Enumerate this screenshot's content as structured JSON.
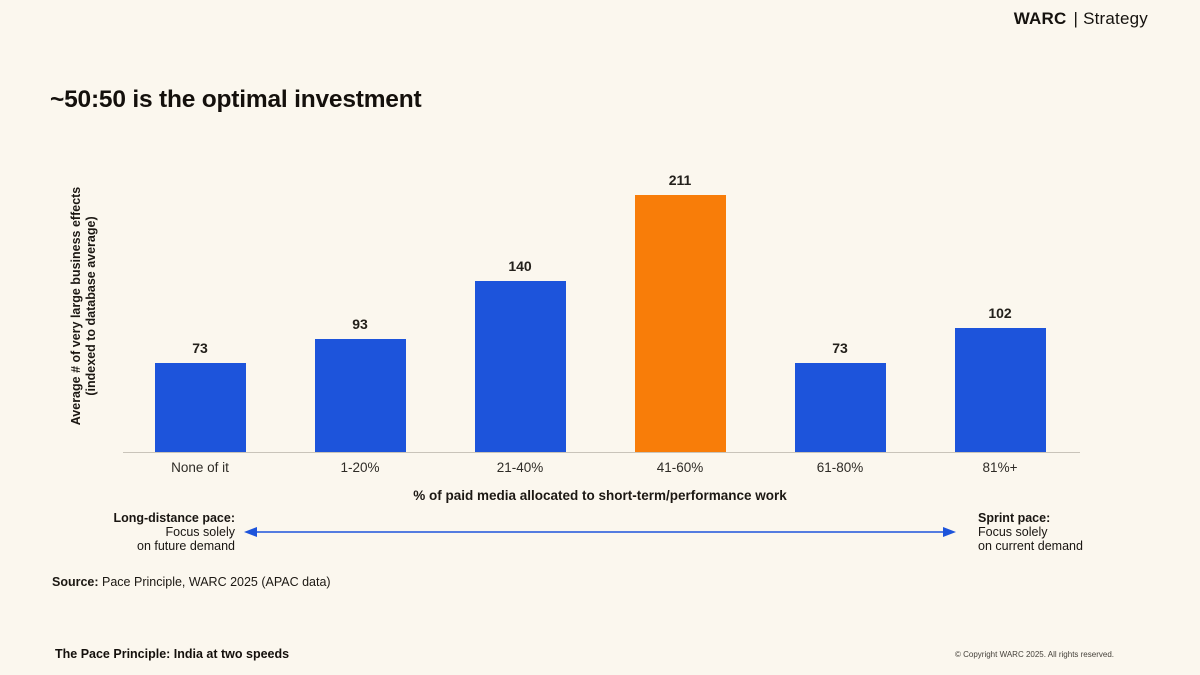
{
  "header": {
    "brand": "WARC",
    "divider": "|",
    "suffix": "Strategy"
  },
  "title": "~50:50 is the optimal investment",
  "chart_data": {
    "type": "bar",
    "categories": [
      "None of it",
      "1-20%",
      "21-40%",
      "41-60%",
      "61-80%",
      "81%+"
    ],
    "values": [
      73,
      93,
      140,
      211,
      73,
      102
    ],
    "highlight_index": 3,
    "bar_color": "#1d54db",
    "highlight_color": "#f87d09",
    "title": "~50:50 is the optimal investment",
    "xlabel": "% of paid media allocated to short-term/performance work",
    "ylabel_line1": "Average # of very large business effects",
    "ylabel_line2": "(indexed to database average)",
    "ylim": [
      0,
      230
    ],
    "grid": false,
    "value_labels": true,
    "legend": "none"
  },
  "annotations": {
    "color": "#1d54db",
    "left": {
      "title": "Long-distance pace:",
      "line1": "Focus solely",
      "line2": "on future demand"
    },
    "right": {
      "title": "Sprint pace:",
      "line1": "Focus solely",
      "line2": "on current demand"
    }
  },
  "source": {
    "label": "Source:",
    "text": " Pace Principle, WARC 2025 (APAC data)"
  },
  "footer": {
    "title": "The Pace Principle: India at two speeds",
    "copyright": "© Copyright WARC 2025. All rights reserved."
  }
}
